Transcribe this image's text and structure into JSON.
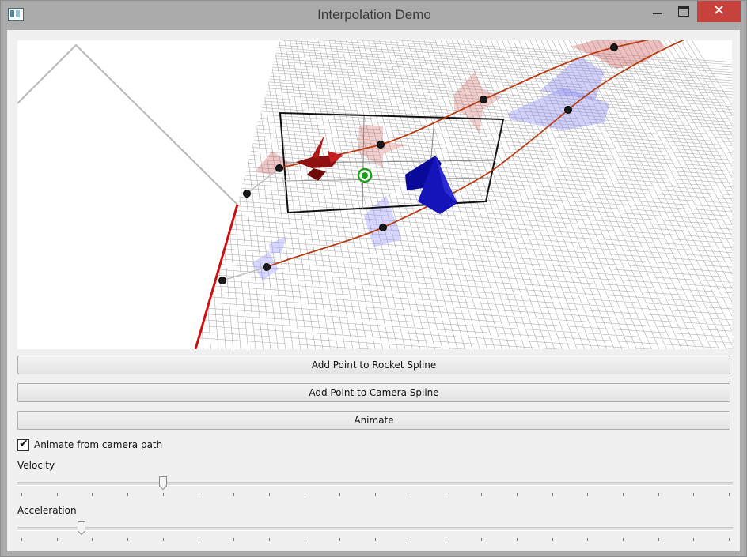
{
  "window": {
    "title": "Interpolation Demo",
    "close_glyph": "✕",
    "icon": "app-window-icon"
  },
  "buttons": {
    "add_rocket": "Add Point to Rocket Spline",
    "add_camera": "Add Point to Camera Spline",
    "animate": "Animate"
  },
  "options": {
    "animate_from_camera": {
      "label": "Animate from camera path",
      "checked": true,
      "check_glyph": "✔"
    }
  },
  "sliders": {
    "velocity": {
      "label": "Velocity",
      "value": 0.2,
      "ticks": 21
    },
    "acceleration": {
      "label": "Acceleration",
      "value": 0.085,
      "ticks": 21
    }
  },
  "colors": {
    "rocket": "#9b1010",
    "camera": "#1616b0",
    "spline": "#b83a10",
    "target": "#1aa01a",
    "close": "#c7423c"
  }
}
